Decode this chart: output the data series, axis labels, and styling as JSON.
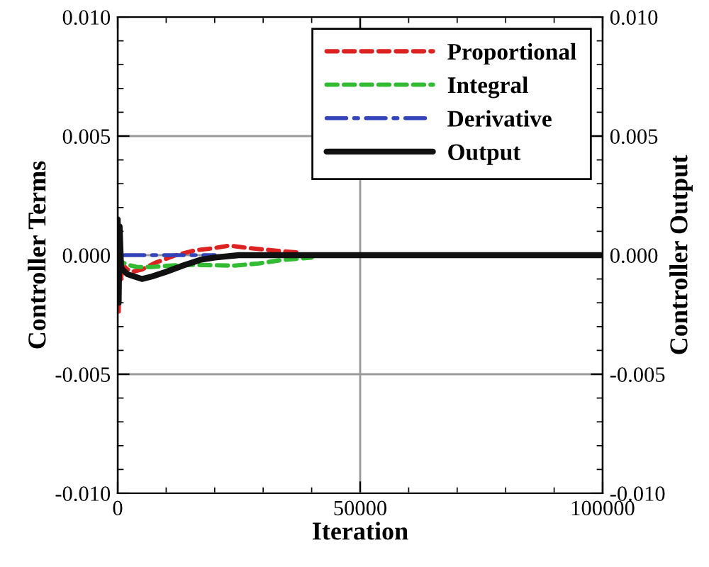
{
  "chart_data": {
    "type": "line",
    "xlabel": "Iteration",
    "ylabel": "Controller Terms",
    "y2label": "Controller Output",
    "xlim": [
      0,
      100000
    ],
    "xticks": [
      0,
      50000,
      100000
    ],
    "ylim": [
      -0.01,
      0.01
    ],
    "yticks": [
      {
        "value": -0.01,
        "label": "-0.010"
      },
      {
        "value": -0.005,
        "label": "-0.005"
      },
      {
        "value": 0,
        "label": "0.000"
      },
      {
        "value": 0.005,
        "label": "0.005"
      },
      {
        "value": 0.01,
        "label": "0.010"
      }
    ],
    "y2lim": [
      -0.01,
      0.01
    ],
    "y2ticks": [
      {
        "value": -0.01,
        "label": "-0.010"
      },
      {
        "value": -0.005,
        "label": "-0.005"
      },
      {
        "value": 0,
        "label": "0.000"
      },
      {
        "value": 0.005,
        "label": "0.005"
      },
      {
        "value": 0.01,
        "label": "0.010"
      }
    ],
    "grid": true,
    "legend": "top right",
    "series": [
      {
        "name": "Proportional",
        "color": "#dd2222",
        "line_style": "dashed",
        "x": [
          0,
          200,
          400,
          700,
          1000,
          2000,
          3000,
          5000,
          8000,
          12000,
          16000,
          20000,
          23000,
          27000,
          32000,
          38000
        ],
        "values": [
          0.001,
          -0.0025,
          0.001,
          -0.001,
          -0.0004,
          -0.0006,
          -0.0007,
          -0.0006,
          -0.0003,
          0.0,
          0.0002,
          0.0003,
          0.0004,
          0.0003,
          0.0002,
          0.0001
        ]
      },
      {
        "name": "Integral",
        "color": "#33bb33",
        "line_style": "dashed",
        "x": [
          0,
          500,
          1000,
          2000,
          4000,
          7000,
          10000,
          14000,
          19000,
          24000,
          29000,
          34000,
          40000
        ],
        "values": [
          0.0,
          -0.0002,
          -0.0003,
          -0.0004,
          -0.0005,
          -0.0005,
          -0.00045,
          -0.0004,
          -0.00042,
          -0.00044,
          -0.00035,
          -0.0002,
          -0.0001
        ]
      },
      {
        "name": "Derivative",
        "color": "#3344bb",
        "line_style": "dashdot",
        "x": [
          0,
          150,
          300,
          600,
          1000,
          3000,
          20000
        ],
        "values": [
          0.0,
          0.0008,
          -0.0006,
          0.0002,
          0.0,
          0.0,
          0.0
        ]
      },
      {
        "name": "Output",
        "color": "#111111",
        "line_style": "solid",
        "axis": "y2",
        "x": [
          0,
          200,
          400,
          700,
          1000,
          2000,
          3500,
          5000,
          7000,
          10000,
          14000,
          17000,
          20000,
          25000,
          100000
        ],
        "values": [
          0.0015,
          -0.002,
          0.0012,
          -0.0005,
          -0.0006,
          -0.0008,
          -0.0009,
          -0.001,
          -0.0009,
          -0.0007,
          -0.0004,
          -0.0002,
          -0.0001,
          0.0,
          0.0
        ]
      }
    ]
  }
}
